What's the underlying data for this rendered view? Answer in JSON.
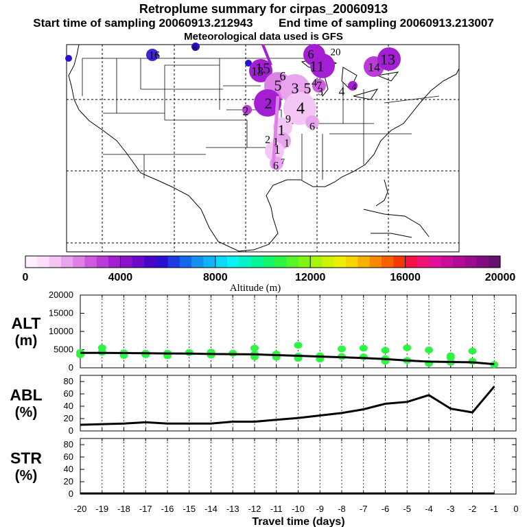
{
  "header": {
    "title": "Retroplume summary for cirpas_20060913",
    "start_label": "Start time of sampling 20060913.212943",
    "end_label": "End time of sampling 20060913.213007",
    "met_label": "Meteorological data used is GFS"
  },
  "map": {
    "plume_labels": [
      "16",
      "8",
      "6",
      "20",
      "11",
      "13",
      "14",
      "13",
      "15",
      "6",
      "3",
      "5",
      "7",
      "3",
      "5",
      "2",
      "4",
      "1",
      "2",
      "4",
      "9",
      "6",
      "1",
      "2",
      "1",
      "1",
      "6",
      "7",
      "4",
      "4"
    ]
  },
  "colorbar": {
    "title": "Altitude (m)",
    "ticks": [
      "0",
      "4000",
      "8000",
      "12000",
      "16000",
      "20000"
    ],
    "colors": [
      "#fff0ff",
      "#fce0fb",
      "#f4c6f5",
      "#e9a4ee",
      "#dc82e6",
      "#cd5bdf",
      "#bb3bd8",
      "#a41fd3",
      "#8a10cc",
      "#6d08c8",
      "#4a06c6",
      "#2a10d2",
      "#1a3ce0",
      "#1468ea",
      "#1490f0",
      "#10b4f6",
      "#0cd8fa",
      "#08f4f4",
      "#04f4c8",
      "#04f498",
      "#14f46c",
      "#30f444",
      "#58f428",
      "#80f414",
      "#a8f40c",
      "#ccf404",
      "#ecf000",
      "#f8d400",
      "#f8b000",
      "#f88800",
      "#f86000",
      "#f83800",
      "#f81040",
      "#f01474",
      "#e01098",
      "#c80c9c",
      "#b00c98",
      "#980c90",
      "#800c80",
      "#681070"
    ]
  },
  "chart_data": [
    {
      "type": "scatter",
      "id": "alt",
      "ylabel_line1": "ALT",
      "ylabel_line2": "(m)",
      "ylim": [
        0,
        20000
      ],
      "yticks": [
        "0",
        "5000",
        "10000",
        "15000",
        "20000"
      ],
      "x": [
        -20,
        -19,
        -18,
        -17,
        -16,
        -15,
        -14,
        -13,
        -12,
        -11,
        -10,
        -9,
        -8,
        -7,
        -6,
        -5,
        -4,
        -3,
        -2,
        -1
      ],
      "median_line": [
        4100,
        4100,
        4050,
        4000,
        3950,
        3900,
        3800,
        3750,
        3700,
        3500,
        3300,
        3100,
        2900,
        2700,
        2400,
        2000,
        1700,
        1600,
        1500,
        1000
      ],
      "points": [
        [
          -20,
          4200
        ],
        [
          -20,
          3600
        ],
        [
          -19,
          4300
        ],
        [
          -19,
          5500
        ],
        [
          -18,
          4100
        ],
        [
          -18,
          3400
        ],
        [
          -17,
          4000
        ],
        [
          -17,
          3600
        ],
        [
          -16,
          4000
        ],
        [
          -16,
          3300
        ],
        [
          -15,
          4200
        ],
        [
          -14,
          4300
        ],
        [
          -14,
          3500
        ],
        [
          -13,
          4000
        ],
        [
          -12,
          3800
        ],
        [
          -12,
          5400
        ],
        [
          -12,
          3000
        ],
        [
          -11,
          3800
        ],
        [
          -11,
          2900
        ],
        [
          -10,
          3200
        ],
        [
          -10,
          2600
        ],
        [
          -10,
          6200
        ],
        [
          -9,
          3300
        ],
        [
          -9,
          2400
        ],
        [
          -8,
          3100
        ],
        [
          -8,
          5200
        ],
        [
          -7,
          3000
        ],
        [
          -7,
          5400
        ],
        [
          -6,
          2500
        ],
        [
          -6,
          4800
        ],
        [
          -6,
          1800
        ],
        [
          -5,
          2000
        ],
        [
          -5,
          5500
        ],
        [
          -4,
          1200
        ],
        [
          -4,
          4900
        ],
        [
          -3,
          1500
        ],
        [
          -3,
          2800
        ],
        [
          -3,
          3300
        ],
        [
          -2,
          1800
        ],
        [
          -2,
          4600
        ],
        [
          -1,
          900
        ]
      ]
    },
    {
      "type": "line",
      "id": "abl",
      "ylabel_line1": "ABL",
      "ylabel_line2": "(%)",
      "ylim": [
        0,
        90
      ],
      "yticks": [
        "0",
        "20",
        "40",
        "60",
        "80"
      ],
      "x": [
        -20,
        -19,
        -18,
        -17,
        -16,
        -15,
        -14,
        -13,
        -12,
        -11,
        -10,
        -9,
        -8,
        -7,
        -6,
        -5,
        -4,
        -3,
        -2,
        -1
      ],
      "values": [
        10,
        11,
        12,
        14,
        12,
        12,
        12,
        15,
        15,
        18,
        21,
        25,
        29,
        35,
        44,
        47,
        58,
        36,
        30,
        72
      ]
    },
    {
      "type": "line",
      "id": "str",
      "ylabel_line1": "STR",
      "ylabel_line2": "(%)",
      "ylim": [
        0,
        90
      ],
      "yticks": [
        "0",
        "20",
        "40",
        "60",
        "80"
      ],
      "x": [
        -20,
        -19,
        -18,
        -17,
        -16,
        -15,
        -14,
        -13,
        -12,
        -11,
        -10,
        -9,
        -8,
        -7,
        -6,
        -5,
        -4,
        -3,
        -2,
        -1
      ],
      "values": [
        1,
        1,
        1,
        1,
        1,
        1,
        1,
        1,
        1,
        1,
        1,
        1,
        1,
        1,
        1,
        1,
        1,
        1,
        1,
        1
      ]
    }
  ],
  "xaxis": {
    "label": "Travel time (days)",
    "ticks": [
      "-20",
      "-19",
      "-18",
      "-17",
      "-16",
      "-15",
      "-14",
      "-13",
      "-12",
      "-11",
      "-10",
      "-9",
      "-8",
      "-7",
      "-6",
      "-5",
      "-4",
      "-3",
      "-2",
      "-1",
      "0"
    ]
  }
}
